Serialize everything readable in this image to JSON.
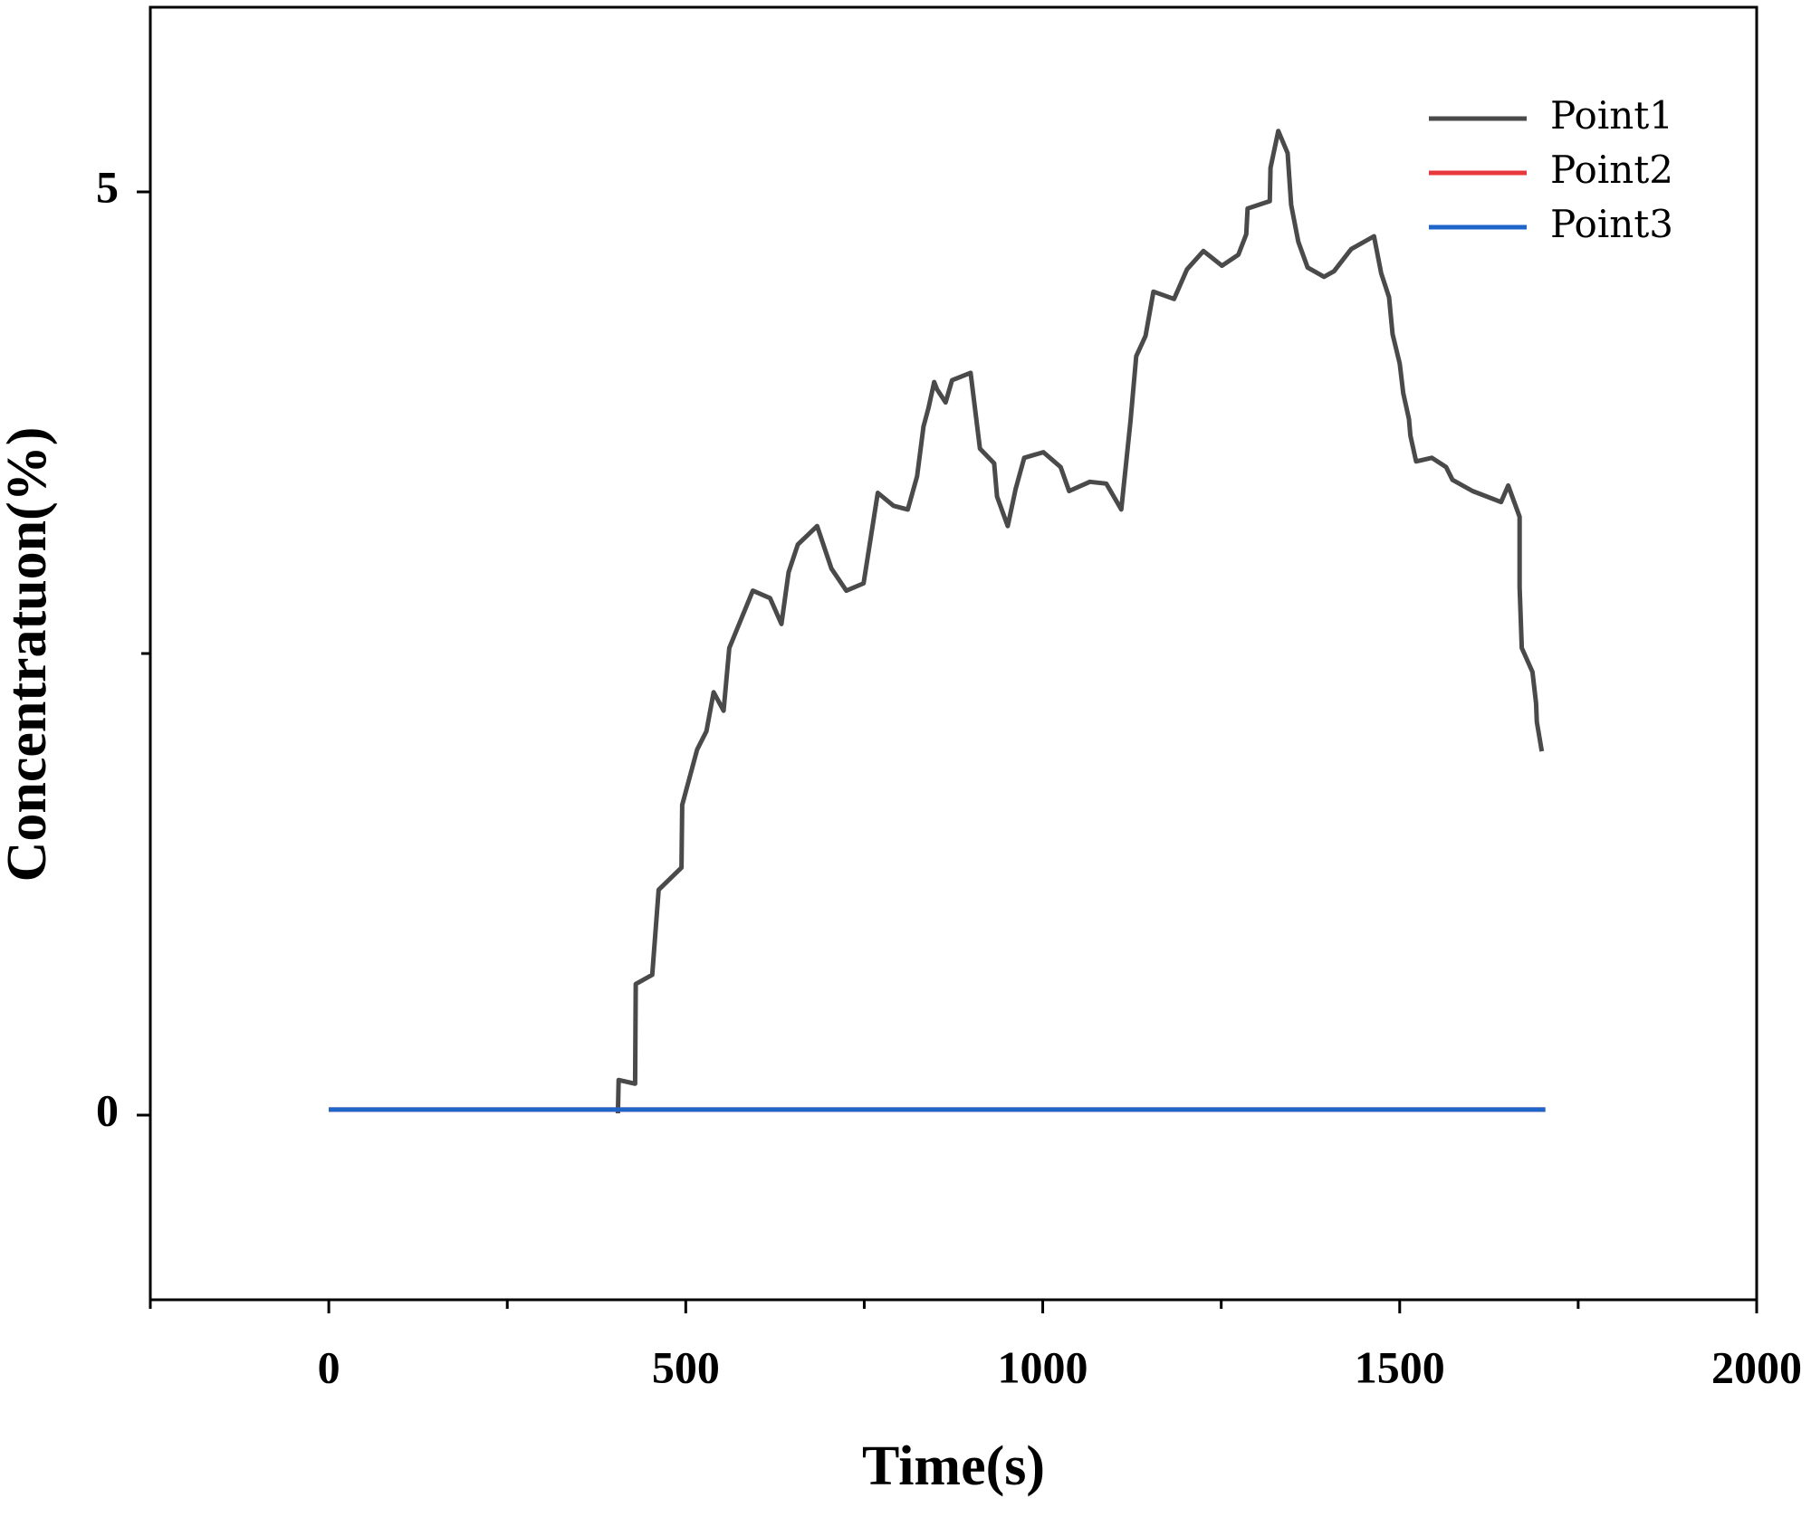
{
  "chart_data": {
    "type": "line",
    "xlabel": "Time(s)",
    "ylabel": "Concentratuon(%)",
    "xlim": [
      -250,
      2000
    ],
    "xticks": [
      0,
      500,
      1000,
      1500,
      2000
    ],
    "xminorticks": [
      -250,
      250,
      750,
      1250,
      1750
    ],
    "ylim": [
      -1,
      6
    ],
    "yticks": [
      0,
      5
    ],
    "yminorticks": [
      2.5
    ],
    "legend": "upper right",
    "series": [
      {
        "name": "Point1",
        "color": "#4a4a4a",
        "x": [
          405,
          406,
          429,
          430,
          453,
          462,
          494,
          495,
          516,
          529,
          539,
          553,
          561,
          594,
          618,
          634,
          644,
          657,
          684,
          704,
          725,
          749,
          769,
          791,
          811,
          824,
          833,
          840,
          848,
          852,
          864,
          873,
          899,
          912,
          932,
          936,
          951,
          962,
          974,
          1001,
          1025,
          1037,
          1066,
          1089,
          1110,
          1123,
          1131,
          1144,
          1155,
          1184,
          1202,
          1225,
          1251,
          1274,
          1285,
          1287,
          1318,
          1319,
          1330,
          1343,
          1348,
          1358,
          1371,
          1394,
          1408,
          1432,
          1464,
          1474,
          1485,
          1490,
          1500,
          1505,
          1513,
          1515,
          1523,
          1545,
          1565,
          1574,
          1602,
          1642,
          1652,
          1668,
          1668,
          1671,
          1686,
          1691,
          1692,
          1699
        ],
        "values": [
          0.01,
          0.19,
          0.17,
          0.71,
          0.76,
          1.22,
          1.34,
          1.68,
          1.98,
          2.08,
          2.29,
          2.19,
          2.53,
          2.84,
          2.8,
          2.66,
          2.94,
          3.09,
          3.19,
          2.96,
          2.84,
          2.88,
          3.37,
          3.3,
          3.28,
          3.46,
          3.73,
          3.83,
          3.97,
          3.93,
          3.86,
          3.98,
          4.02,
          3.61,
          3.53,
          3.35,
          3.19,
          3.39,
          3.56,
          3.59,
          3.51,
          3.38,
          3.43,
          3.42,
          3.28,
          3.76,
          4.11,
          4.22,
          4.46,
          4.42,
          4.58,
          4.68,
          4.6,
          4.66,
          4.77,
          4.91,
          4.95,
          5.13,
          5.33,
          5.21,
          4.93,
          4.73,
          4.59,
          4.54,
          4.57,
          4.69,
          4.76,
          4.56,
          4.43,
          4.23,
          4.07,
          3.91,
          3.77,
          3.68,
          3.54,
          3.56,
          3.51,
          3.44,
          3.38,
          3.32,
          3.41,
          3.24,
          2.86,
          2.53,
          2.4,
          2.23,
          2.13,
          1.97
        ]
      },
      {
        "name": "Point2",
        "color": "#e8383d",
        "x": [
          0,
          1704
        ],
        "values": [
          0.03,
          0.03
        ]
      },
      {
        "name": "Point3",
        "color": "#1f64c8",
        "x": [
          0,
          1704
        ],
        "values": [
          0.03,
          0.03
        ]
      }
    ]
  }
}
